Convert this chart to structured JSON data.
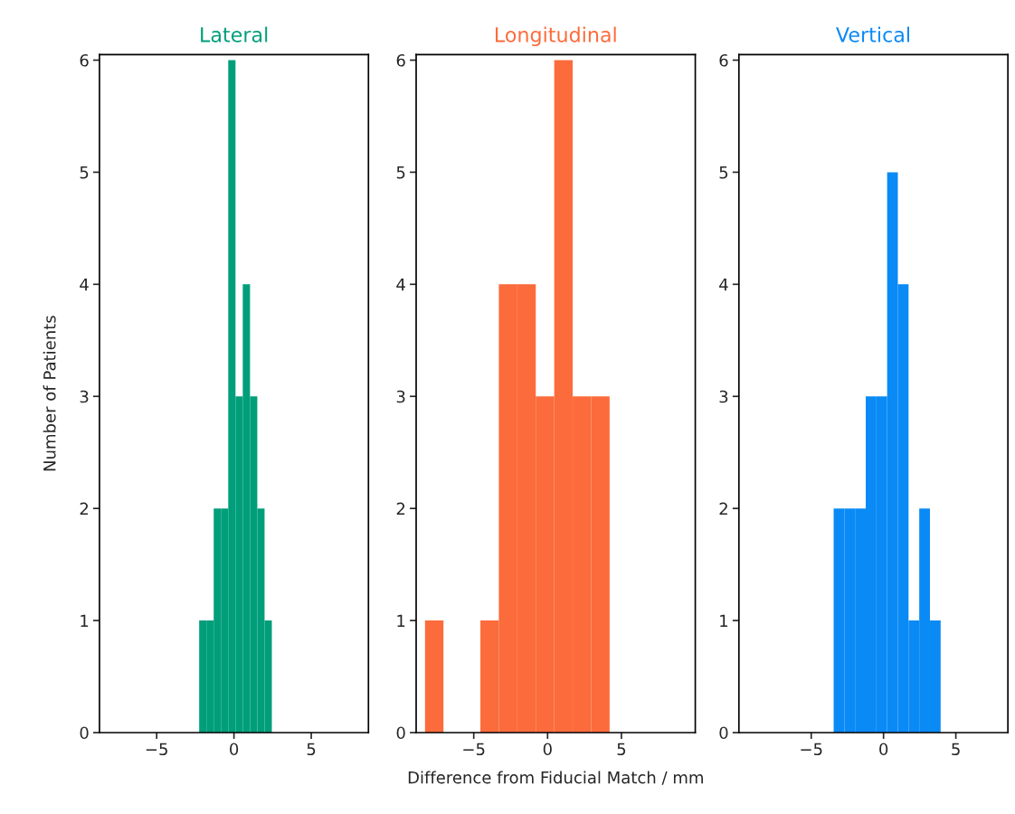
{
  "chart_data": [
    {
      "type": "histogram",
      "title": "Lateral",
      "ylabel": "Number of Patients",
      "color": "#009e7a",
      "bins": [
        -2.25,
        -1.78,
        -1.31,
        -0.84,
        -0.37,
        0.1,
        0.57,
        1.04,
        1.51,
        1.98,
        2.45
      ],
      "values": [
        1,
        1,
        2,
        2,
        6,
        3,
        4,
        3,
        2,
        1
      ],
      "xlim": [
        -8.7,
        8.7
      ],
      "xticks": [
        -5,
        0,
        5
      ],
      "ylim": [
        0,
        6.05
      ],
      "yticks": [
        0,
        1,
        2,
        3,
        4,
        5,
        6
      ]
    },
    {
      "type": "histogram",
      "title": "Longitudinal",
      "xlabel": "Difference from Fiducial Match / mm",
      "color": "#fc6b3b",
      "bins": [
        -8.3,
        -7.05,
        -5.8,
        -4.55,
        -3.3,
        -2.05,
        -0.8,
        0.45,
        1.7,
        2.95,
        4.2
      ],
      "values": [
        1,
        0,
        0,
        1,
        4,
        4,
        3,
        6,
        3,
        3
      ],
      "xlim": [
        -8.9,
        10.0
      ],
      "xticks": [
        -5,
        0,
        5
      ],
      "ylim": [
        0,
        6.05
      ],
      "yticks": [
        0,
        1,
        2,
        3,
        4,
        5,
        6
      ]
    },
    {
      "type": "histogram",
      "title": "Vertical",
      "color": "#0a8af5",
      "bins": [
        -3.45,
        -2.71,
        -1.97,
        -1.23,
        -0.49,
        0.25,
        0.99,
        1.73,
        2.47,
        3.21,
        3.95
      ],
      "values": [
        2,
        2,
        2,
        3,
        3,
        5,
        4,
        1,
        2,
        1
      ],
      "xlim": [
        -10.0,
        8.6
      ],
      "xticks": [
        -5,
        0,
        5
      ],
      "ylim": [
        0,
        6.05
      ],
      "yticks": [
        0,
        1,
        2,
        3,
        4,
        5,
        6
      ]
    }
  ]
}
